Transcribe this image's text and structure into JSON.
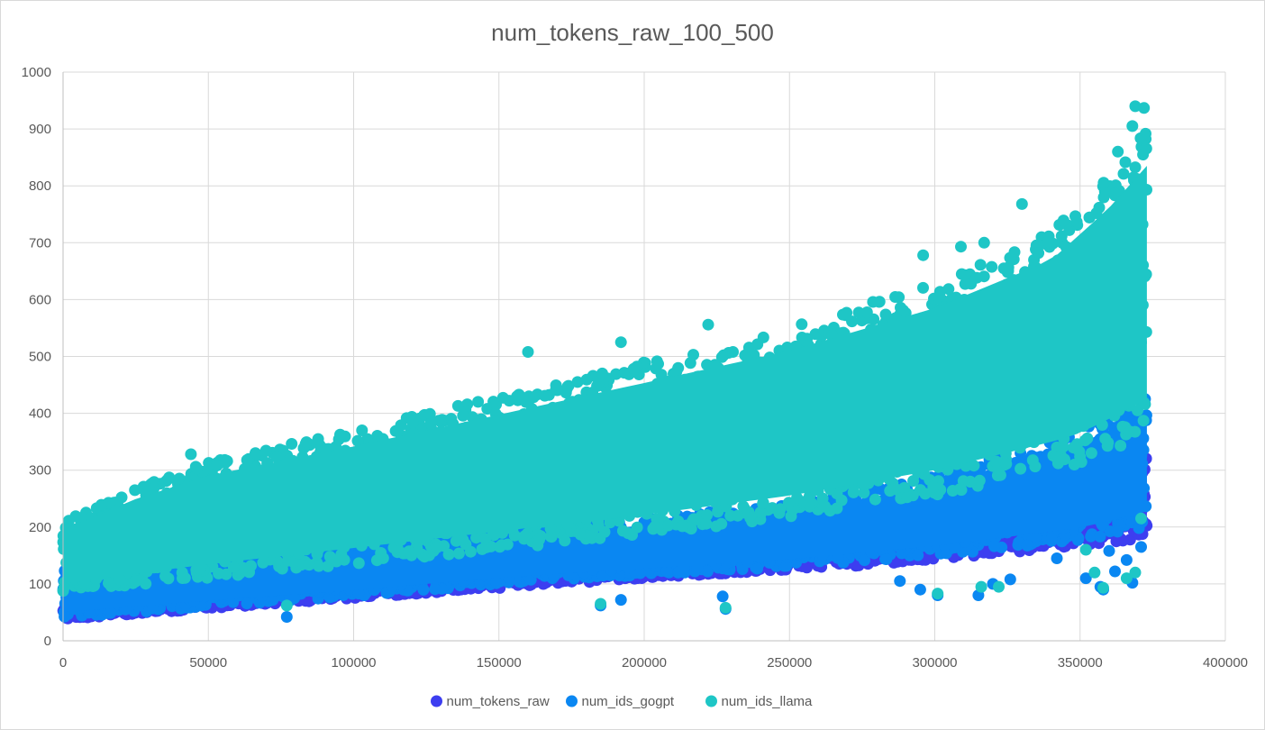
{
  "chart_data": {
    "type": "scatter",
    "title": "num_tokens_raw_100_500",
    "xlabel": "",
    "ylabel": "",
    "xlim": [
      0,
      400000
    ],
    "ylim": [
      0,
      1000
    ],
    "x_ticks": [
      0,
      50000,
      100000,
      150000,
      200000,
      250000,
      300000,
      350000,
      400000
    ],
    "y_ticks": [
      0,
      100,
      200,
      300,
      400,
      500,
      600,
      700,
      800,
      900,
      1000
    ],
    "grid": true,
    "legend_position": "bottom",
    "series": [
      {
        "name": "num_tokens_raw",
        "color": "#3d3ef0",
        "x_range": [
          0,
          373000
        ],
        "band_low": [
          [
            0,
            38
          ],
          [
            100000,
            75
          ],
          [
            200000,
            110
          ],
          [
            300000,
            140
          ],
          [
            373000,
            180
          ]
        ],
        "band_high": [
          [
            0,
            70
          ],
          [
            100000,
            120
          ],
          [
            200000,
            180
          ],
          [
            300000,
            260
          ],
          [
            373000,
            330
          ]
        ],
        "outliers": []
      },
      {
        "name": "num_ids_gogpt",
        "color": "#0a87f2",
        "x_range": [
          0,
          373000
        ],
        "band_low": [
          [
            0,
            40
          ],
          [
            50000,
            60
          ],
          [
            100000,
            78
          ],
          [
            150000,
            100
          ],
          [
            200000,
            115
          ],
          [
            250000,
            130
          ],
          [
            300000,
            150
          ],
          [
            350000,
            175
          ],
          [
            373000,
            200
          ]
        ],
        "band_high": [
          [
            0,
            125
          ],
          [
            50000,
            150
          ],
          [
            100000,
            170
          ],
          [
            150000,
            190
          ],
          [
            200000,
            215
          ],
          [
            250000,
            240
          ],
          [
            300000,
            290
          ],
          [
            350000,
            370
          ],
          [
            373000,
            430
          ]
        ],
        "outliers": [
          [
            77000,
            42
          ],
          [
            185000,
            62
          ],
          [
            192000,
            72
          ],
          [
            227000,
            78
          ],
          [
            228000,
            56
          ],
          [
            288000,
            105
          ],
          [
            295000,
            90
          ],
          [
            301000,
            80
          ],
          [
            315000,
            80
          ],
          [
            320000,
            100
          ],
          [
            326000,
            108
          ],
          [
            342000,
            145
          ],
          [
            352000,
            110
          ],
          [
            357000,
            95
          ],
          [
            358000,
            90
          ],
          [
            360000,
            158
          ],
          [
            362000,
            122
          ],
          [
            366000,
            142
          ],
          [
            368000,
            102
          ],
          [
            371000,
            165
          ]
        ]
      },
      {
        "name": "num_ids_llama",
        "color": "#1ec6c6",
        "x_range": [
          0,
          373000
        ],
        "band_low": [
          [
            0,
            85
          ],
          [
            50000,
            110
          ],
          [
            100000,
            135
          ],
          [
            150000,
            160
          ],
          [
            200000,
            185
          ],
          [
            250000,
            215
          ],
          [
            300000,
            255
          ],
          [
            350000,
            310
          ],
          [
            373000,
            360
          ]
        ],
        "band_high": [
          [
            0,
            210
          ],
          [
            25000,
            270
          ],
          [
            50000,
            315
          ],
          [
            100000,
            370
          ],
          [
            150000,
            430
          ],
          [
            200000,
            490
          ],
          [
            250000,
            550
          ],
          [
            300000,
            630
          ],
          [
            340000,
            720
          ],
          [
            360000,
            820
          ],
          [
            373000,
            900
          ]
        ],
        "outliers": [
          [
            44000,
            328
          ],
          [
            77000,
            62
          ],
          [
            160000,
            508
          ],
          [
            192000,
            525
          ],
          [
            185000,
            65
          ],
          [
            222000,
            556
          ],
          [
            228000,
            58
          ],
          [
            296000,
            678
          ],
          [
            309000,
            693
          ],
          [
            330000,
            768
          ],
          [
            317000,
            700
          ],
          [
            363000,
            860
          ],
          [
            369000,
            940
          ],
          [
            372000,
            937
          ],
          [
            301000,
            83
          ],
          [
            316000,
            95
          ],
          [
            322000,
            95
          ],
          [
            355000,
            120
          ],
          [
            358000,
            93
          ],
          [
            366000,
            110
          ],
          [
            369000,
            120
          ],
          [
            352000,
            160
          ],
          [
            371000,
            215
          ],
          [
            368000,
            905
          ]
        ]
      }
    ]
  }
}
